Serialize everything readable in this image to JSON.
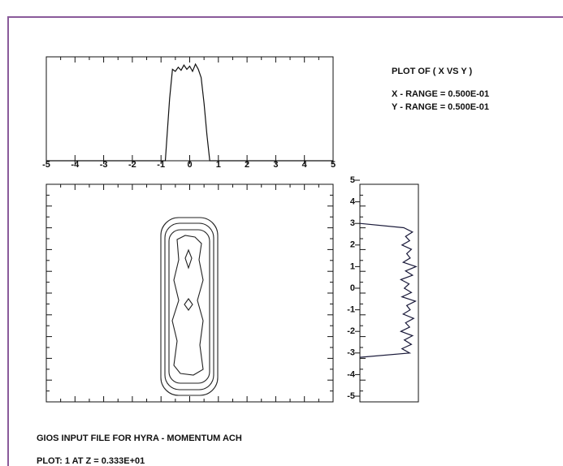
{
  "chart_data": [
    {
      "type": "line",
      "orientation": "vertical",
      "x": [
        -5,
        -0.85,
        -0.7,
        -0.6,
        -0.5,
        -0.4,
        -0.3,
        -0.2,
        -0.1,
        0,
        0.1,
        0.2,
        0.3,
        0.4,
        0.5,
        0.6,
        0.7,
        5
      ],
      "values": [
        0,
        0,
        60,
        88,
        86,
        90,
        87,
        92,
        88,
        91,
        86,
        93,
        88,
        80,
        55,
        25,
        0,
        0
      ],
      "xlim": [
        -5,
        5
      ],
      "xticks": [
        -5,
        -4,
        -3,
        -2,
        -1,
        0,
        1,
        2,
        3,
        4,
        5
      ],
      "ylim": [
        0,
        100
      ],
      "color": "#111111"
    },
    {
      "type": "line",
      "orientation": "horizontal",
      "y": [
        -3.2,
        -3.0,
        -2.8,
        -2.6,
        -2.4,
        -2.2,
        -2.0,
        -1.8,
        -1.6,
        -1.4,
        -1.2,
        -1.0,
        -0.8,
        -0.6,
        -0.4,
        -0.2,
        0,
        0.2,
        0.4,
        0.6,
        0.8,
        1.0,
        1.2,
        1.4,
        1.6,
        1.8,
        2.0,
        2.2,
        2.4,
        2.6,
        2.8,
        3.0
      ],
      "values": [
        0,
        85,
        72,
        88,
        76,
        90,
        70,
        85,
        78,
        92,
        74,
        86,
        80,
        95,
        72,
        88,
        76,
        84,
        70,
        90,
        78,
        96,
        74,
        86,
        80,
        88,
        72,
        85,
        78,
        90,
        75,
        0
      ],
      "ylim": [
        -5,
        5
      ],
      "yticks": [
        5,
        4,
        3,
        2,
        1,
        0,
        -1,
        -2,
        -3,
        -4,
        -5
      ],
      "xlim": [
        0,
        100
      ],
      "color": "#1a1a3a"
    }
  ],
  "info": {
    "title": "PLOT OF ( X VS Y )",
    "x_range": "X - RANGE  =  0.500E-01",
    "y_range": "Y - RANGE  =  0.500E-01"
  },
  "footer": {
    "file": "GIOS INPUT FILE FOR HYRA  -  MOMENTUM ACH",
    "plot": "PLOT:    1   AT  Z =   0.333E+01"
  }
}
